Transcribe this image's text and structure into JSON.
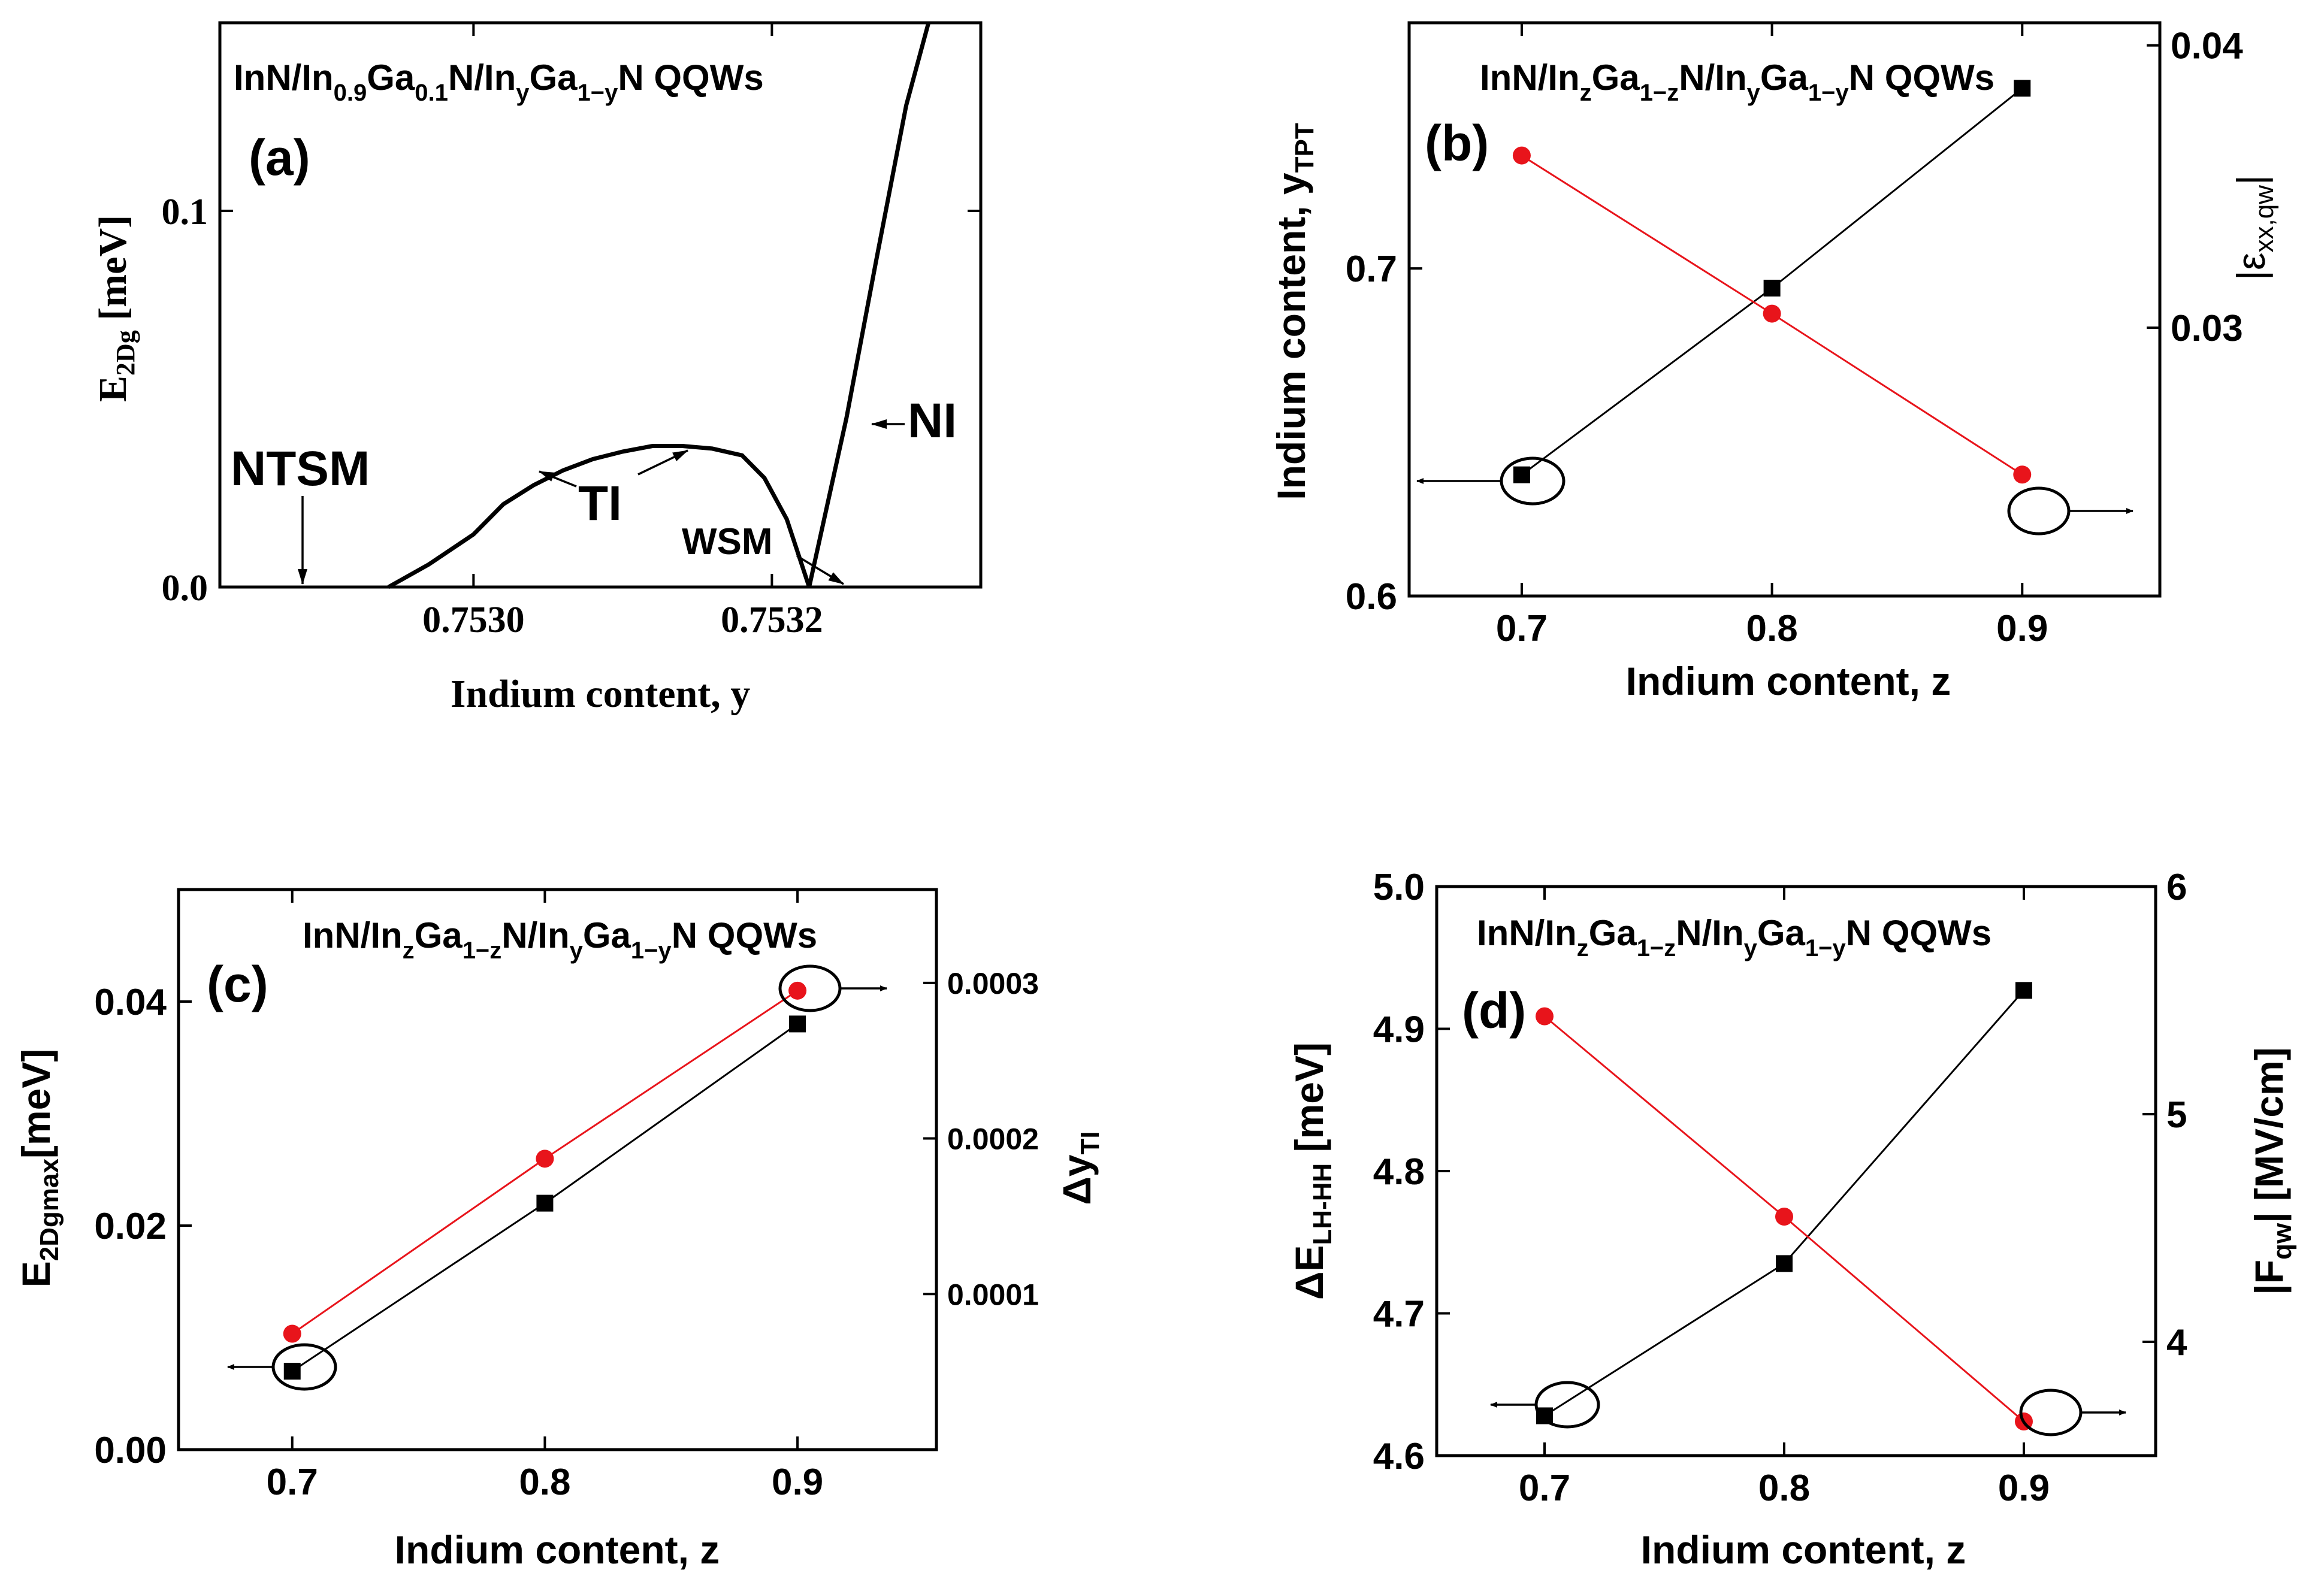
{
  "chart_data": [
    {
      "id": "a",
      "type": "line",
      "panel_label": "(a)",
      "title": {
        "pre": "InN/In",
        "s1": "0.9",
        "mid1": "Ga",
        "s2": "0.1",
        "mid2": "N/In",
        "s3": "y",
        "mid3": "Ga",
        "s4": "1−y",
        "post": "N QQWs"
      },
      "xlabel": "Indium content, y",
      "ylabel": {
        "main": "E",
        "sub": "2Dg",
        "post": " [meV]"
      },
      "xlim": [
        0.75283,
        0.75334
      ],
      "ylim": [
        0,
        0.15
      ],
      "xticks": [
        0.753,
        0.7532
      ],
      "xtick_labels": [
        "0.7530",
        "0.7532"
      ],
      "yticks": [
        0,
        0.1
      ],
      "ytick_labels": [
        "0.0",
        "0.1"
      ],
      "series": [
        {
          "name": "TI region",
          "x": [
            0.752943,
            0.75297,
            0.753,
            0.75302,
            0.75304,
            0.75306,
            0.75308,
            0.7531,
            0.75312,
            0.75314,
            0.75316,
            0.75318,
            0.753195,
            0.75321,
            0.753225
          ],
          "y": [
            0,
            0.006,
            0.014,
            0.022,
            0.027,
            0.031,
            0.034,
            0.036,
            0.0375,
            0.0375,
            0.0368,
            0.035,
            0.029,
            0.018,
            0
          ]
        },
        {
          "name": "NI region",
          "x": [
            0.753225,
            0.75325,
            0.75327,
            0.75329,
            0.753305
          ],
          "y": [
            0,
            0.045,
            0.087,
            0.128,
            0.15
          ]
        }
      ],
      "annotations": [
        "NTSM",
        "TI",
        "WSM",
        "NI"
      ]
    },
    {
      "id": "b",
      "type": "line",
      "panel_label": "(b)",
      "title": {
        "pre": "InN/In",
        "s1": "z",
        "mid1": "Ga",
        "s2": "1−z",
        "mid2": "N/In",
        "s3": "y",
        "mid3": "Ga",
        "s4": "1−y",
        "post": "N QQWs"
      },
      "xlabel": "Indium content, z",
      "ylabel": {
        "main": "Indium content, y",
        "sub": "TPT",
        "post": ""
      },
      "ylabel_right": {
        "pre": "|ε",
        "sub": "xx,qw",
        "post": "|"
      },
      "xlim": [
        0.655,
        0.955
      ],
      "ylim": [
        0.6,
        0.775
      ],
      "ylim_right": [
        0.0205,
        0.0408
      ],
      "xticks": [
        0.7,
        0.8,
        0.9
      ],
      "xtick_labels": [
        "0.7",
        "0.8",
        "0.9"
      ],
      "yticks": [
        0.6,
        0.7
      ],
      "ytick_labels": [
        "0.6",
        "0.7"
      ],
      "yticks_right": [
        0.03,
        0.04
      ],
      "ytick_labels_right": [
        "0.03",
        "0.04"
      ],
      "series": [
        {
          "name": "y_TPT",
          "axis": "left",
          "color": "#000000",
          "marker": "square",
          "x": [
            0.7,
            0.8,
            0.9
          ],
          "y": [
            0.637,
            0.694,
            0.755
          ]
        },
        {
          "name": "|εxx,qw|",
          "axis": "right",
          "color": "#e8141b",
          "marker": "circle",
          "x": [
            0.7,
            0.8,
            0.9
          ],
          "y": [
            0.0361,
            0.0305,
            0.0248
          ]
        }
      ]
    },
    {
      "id": "c",
      "type": "line",
      "panel_label": "(c)",
      "title": {
        "pre": "InN/In",
        "s1": "z",
        "mid1": "Ga",
        "s2": "1−z",
        "mid2": "N/In",
        "s3": "y",
        "mid3": "Ga",
        "s4": "1−y",
        "post": "N QQWs"
      },
      "xlabel": "Indium content, z",
      "ylabel": {
        "main": "E",
        "sub": "2Dgmax",
        "post": "[meV]"
      },
      "ylabel_right": {
        "pre": "Δy",
        "sub": "TI",
        "post": ""
      },
      "xlim": [
        0.655,
        0.955
      ],
      "ylim": [
        0,
        0.05
      ],
      "ylim_right": [
        0,
        0.00036
      ],
      "xticks": [
        0.7,
        0.8,
        0.9
      ],
      "xtick_labels": [
        "0.7",
        "0.8",
        "0.9"
      ],
      "yticks": [
        0,
        0.02,
        0.04
      ],
      "ytick_labels": [
        "0.00",
        "0.02",
        "0.04"
      ],
      "yticks_right": [
        0.0001,
        0.0002,
        0.0003
      ],
      "ytick_labels_right": [
        "0.0001",
        "0.0002",
        "0.0003"
      ],
      "series": [
        {
          "name": "E2Dgmax",
          "axis": "left",
          "color": "#000000",
          "marker": "square",
          "x": [
            0.7,
            0.8,
            0.9
          ],
          "y": [
            0.007,
            0.022,
            0.038
          ]
        },
        {
          "name": "ΔyTI",
          "axis": "right",
          "color": "#e8141b",
          "marker": "circle",
          "x": [
            0.7,
            0.8,
            0.9
          ],
          "y": [
            7.45e-05,
            0.000187,
            0.000295
          ]
        }
      ]
    },
    {
      "id": "d",
      "type": "line",
      "panel_label": "(d)",
      "title": {
        "pre": "InN/In",
        "s1": "z",
        "mid1": "Ga",
        "s2": "1−z",
        "mid2": "N/In",
        "s3": "y",
        "mid3": "Ga",
        "s4": "1−y",
        "post": "N QQWs"
      },
      "xlabel": "Indium content, z",
      "ylabel": {
        "main": "ΔE",
        "sub": "LH-HH",
        "post": " [meV]"
      },
      "ylabel_right": {
        "pre": "|F",
        "sub": "qw",
        "post": "| [MV/cm]"
      },
      "xlim": [
        0.655,
        0.955
      ],
      "ylim": [
        4.6,
        5.0
      ],
      "ylim_right": [
        3.5,
        6.0
      ],
      "xticks": [
        0.7,
        0.8,
        0.9
      ],
      "xtick_labels": [
        "0.7",
        "0.8",
        "0.9"
      ],
      "yticks": [
        4.6,
        4.7,
        4.8,
        4.9,
        5.0
      ],
      "ytick_labels": [
        "4.6",
        "4.7",
        "4.8",
        "4.9",
        "5.0"
      ],
      "yticks_right": [
        4,
        5,
        6
      ],
      "ytick_labels_right": [
        "4",
        "5",
        "6"
      ],
      "series": [
        {
          "name": "ΔELH-HH",
          "axis": "left",
          "color": "#000000",
          "marker": "square",
          "x": [
            0.7,
            0.8,
            0.9
          ],
          "y": [
            4.628,
            4.735,
            4.927
          ]
        },
        {
          "name": "|Fqw|",
          "axis": "right",
          "color": "#e8141b",
          "marker": "circle",
          "x": [
            0.7,
            0.8,
            0.9
          ],
          "y": [
            5.43,
            4.55,
            3.65
          ]
        }
      ]
    }
  ]
}
